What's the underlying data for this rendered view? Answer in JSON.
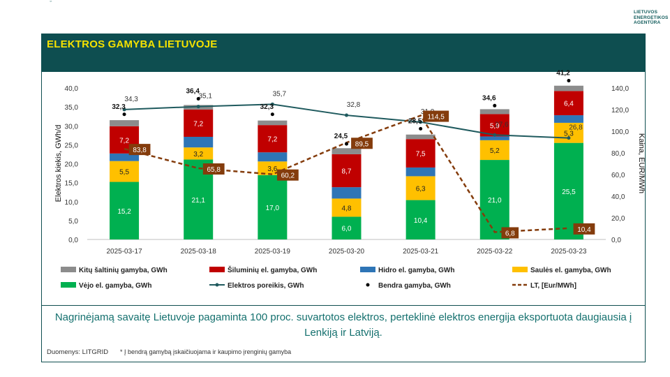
{
  "logo": {
    "text_lines": [
      "LIETUVOS",
      "ENERGETIKOS",
      "AGENTŪRA"
    ]
  },
  "footer": {
    "summary": "Nagrinėjamą savaitę Lietuvoje pagaminta 100 proc. suvartotos elektros, perteklinė elektros energija eksportuota daugiausia į Lenkiją ir Latviją.",
    "source": "Duomenys: LITGRID",
    "note": "* Į bendrą gamybą įskaičiuojama ir kaupimo įrenginių gamyba"
  },
  "colors": {
    "brand": "#0e4e50",
    "title": "#f5e200",
    "summary": "#14706e",
    "kiti": "#8c8c8c",
    "siluminiu": "#c00000",
    "hidro": "#2e75b6",
    "saules": "#ffc000",
    "vejo": "#00b050",
    "poreikis": "#1f5a5e",
    "bendra": "#000000",
    "lt": "#843c0c"
  },
  "chart_data": {
    "type": "bar",
    "title": "ELEKTROS GAMYBA LIETUVOJE",
    "categories": [
      "2025-03-17",
      "2025-03-18",
      "2025-03-19",
      "2025-03-20",
      "2025-03-21",
      "2025-03-22",
      "2025-03-23"
    ],
    "ylabel": "Elektros kiekis, GWh/d",
    "y2label": "Kaina, EUR/MWh",
    "ylim": [
      0,
      40
    ],
    "y2lim": [
      0,
      140
    ],
    "yticks": [
      "0,0",
      "5,0",
      "10,0",
      "15,0",
      "20,0",
      "25,0",
      "30,0",
      "35,0",
      "40,0"
    ],
    "y2ticks": [
      "0,0",
      "20,0",
      "40,0",
      "60,0",
      "80,0",
      "100,0",
      "120,0",
      "140,0"
    ],
    "stacked_series": [
      {
        "name": "Vėjo el. gamyba, GWh",
        "values": [
          15.2,
          21.1,
          17.0,
          6.0,
          10.4,
          21.0,
          25.5
        ],
        "labels": [
          "15,2",
          "21,1",
          "17,0",
          "6,0",
          "10,4",
          "21,0",
          "25,5"
        ]
      },
      {
        "name": "Saulės el. gamyba, GWh",
        "values": [
          5.5,
          3.2,
          3.6,
          4.8,
          6.3,
          5.2,
          5.3
        ],
        "labels": [
          "5,5",
          "3,2",
          "3,6",
          "4,8",
          "6,3",
          "5,2",
          "5,3"
        ]
      },
      {
        "name": "Hidro el. gamyba, GWh",
        "values": [
          2.0,
          2.8,
          2.4,
          3.0,
          2.3,
          1.0,
          2.0
        ],
        "labels": []
      },
      {
        "name": "Šiluminių el. gamyba, GWh",
        "values": [
          7.2,
          7.2,
          7.2,
          8.7,
          7.5,
          5.9,
          6.4
        ],
        "labels": [
          "7,2",
          "7,2",
          "7,2",
          "8,7",
          "7,5",
          "5,9",
          "6,4"
        ]
      },
      {
        "name": "Kitų šaltinių gamyba,  GWh",
        "values": [
          1.6,
          1.2,
          1.2,
          1.6,
          1.2,
          1.3,
          1.4
        ],
        "labels": []
      }
    ],
    "bendra_gamyba": {
      "name": "Bendra gamyba, GWh",
      "values": [
        32.3,
        36.4,
        32.3,
        24.5,
        28.5,
        34.6,
        41.2
      ],
      "labels": [
        "32,3",
        "36,4",
        "32,3",
        "24,5",
        "28,5",
        "34,6",
        "41,2"
      ]
    },
    "poreikis": {
      "name": "Elektros poreikis, GWh",
      "values": [
        34.3,
        35.1,
        35.7,
        32.8,
        31.0,
        27.6,
        26.8
      ],
      "labels": [
        "34,3",
        "35,1",
        "35,7",
        "32,8",
        "31,0",
        "27,6",
        "26,8"
      ]
    },
    "lt_price": {
      "name": "LT, [Eur/MWh]",
      "values": [
        83.8,
        65.8,
        60.2,
        89.5,
        114.5,
        6.8,
        10.4
      ],
      "labels": [
        "83,8",
        "65,8",
        "60,2",
        "89,5",
        "114,5",
        "6,8",
        "10,4"
      ]
    },
    "legend": [
      [
        "Kitų šaltinių gamyba,  GWh",
        "Šiluminių el. gamyba, GWh",
        "Hidro el. gamyba, GWh",
        "Saulės el. gamyba, GWh"
      ],
      [
        "Vėjo el. gamyba, GWh",
        "Elektros poreikis, GWh",
        "Bendra gamyba, GWh",
        "LT, [Eur/MWh]"
      ]
    ]
  }
}
